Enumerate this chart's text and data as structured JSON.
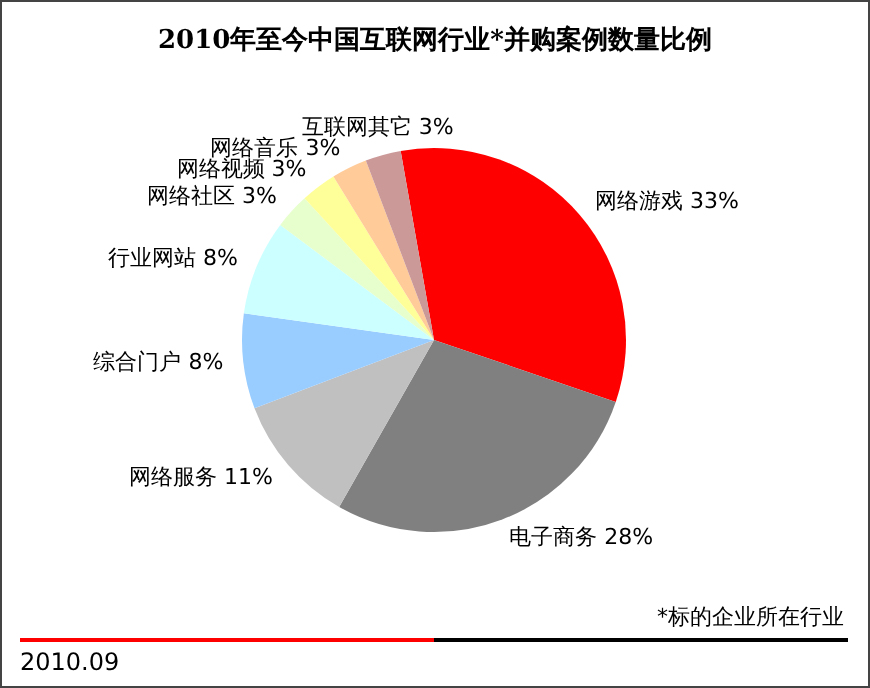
{
  "chart_data": {
    "type": "pie",
    "title": "2010年至今中国互联网行业*并购案例数量比例",
    "categories": [
      "网络游戏",
      "电子商务",
      "网络服务",
      "综合门户",
      "行业网站",
      "网络社区",
      "网络视频",
      "网络音乐",
      "互联网其它"
    ],
    "values": [
      33,
      28,
      11,
      8,
      8,
      3,
      3,
      3,
      3
    ],
    "value_labels": [
      "33%",
      "28%",
      "11%",
      "8%",
      "8%",
      "3%",
      "3%",
      "3%",
      "3%"
    ],
    "colors": [
      "#ff0000",
      "#808080",
      "#c0c0c0",
      "#99ccff",
      "#ccffff",
      "#e6ffcc",
      "#ffff99",
      "#ffcc99",
      "#cc9999"
    ],
    "annotations": [
      "*标的企业所在行业",
      "2010.09"
    ],
    "legend": false
  }
}
